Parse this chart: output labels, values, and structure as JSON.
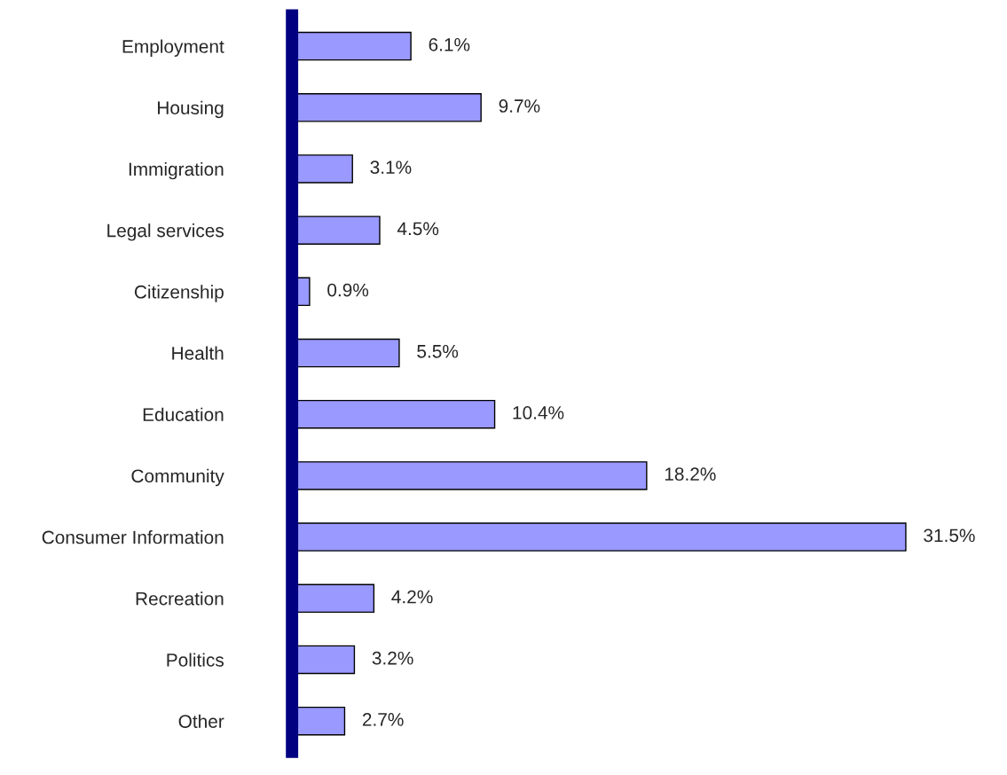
{
  "chart_data": {
    "type": "bar",
    "orientation": "horizontal",
    "categories": [
      "Employment",
      "Housing",
      "Immigration",
      "Legal services",
      "Citizenship",
      "Health",
      "Education",
      "Community",
      "Consumer Information",
      "Recreation",
      "Politics",
      "Other"
    ],
    "values": [
      6.1,
      9.7,
      3.1,
      4.5,
      0.9,
      5.5,
      10.4,
      18.2,
      31.5,
      4.2,
      3.2,
      2.7
    ],
    "value_labels": [
      "6.1%",
      "9.7%",
      "3.1%",
      "4.5%",
      "0.9%",
      "5.5%",
      "10.4%",
      "18.2%",
      "31.5%",
      "4.2%",
      "3.2%",
      "2.7%"
    ],
    "color": "#9999ff",
    "tick_labels": "y",
    "grid": false,
    "legend": false
  }
}
